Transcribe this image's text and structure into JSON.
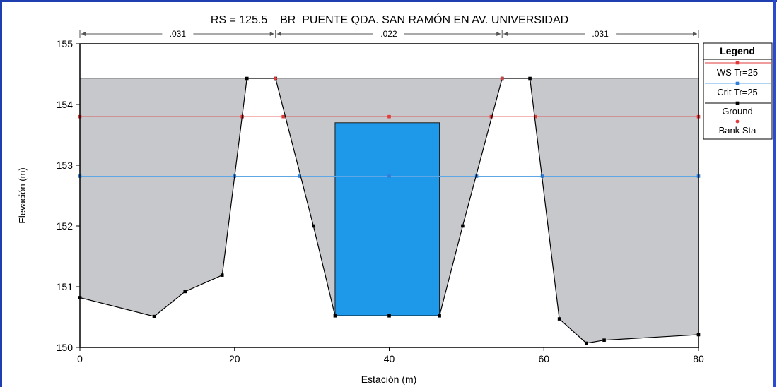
{
  "chart_data": {
    "type": "area",
    "title": "RS = 125.5    BR  PUENTE QDA. SAN RAMÓN EN AV. UNIVERSIDAD",
    "xlabel": "Estación (m)",
    "ylabel": "Elevación (m)",
    "xlim": [
      0,
      80
    ],
    "ylim": [
      150,
      155
    ],
    "xticks": [
      "0",
      "20",
      "40",
      "60",
      "80"
    ],
    "yticks": [
      "150",
      "151",
      "152",
      "153",
      "154",
      "155"
    ],
    "grid": false,
    "legend_position": "right",
    "legend_title": "Legend",
    "colors": {
      "fill": "#c7c8cc",
      "bridge": "#1e98e8",
      "ws": "#e23a3a",
      "crit": "#2f7fd8",
      "ground": "#000000",
      "bank": "#e23a3a"
    },
    "mannings_n": [
      {
        "label": ".031",
        "from": 0,
        "to": 25.3
      },
      {
        "label": ".022",
        "from": 25.3,
        "to": 54.6
      },
      {
        "label": ".031",
        "from": 54.6,
        "to": 80
      }
    ],
    "deck_elevation": 154.43,
    "ground": [
      {
        "x": 0,
        "y": 150.82
      },
      {
        "x": 9.6,
        "y": 150.51
      },
      {
        "x": 13.6,
        "y": 150.92
      },
      {
        "x": 18.4,
        "y": 151.19
      },
      {
        "x": 21.6,
        "y": 154.43
      },
      {
        "x": 25.3,
        "y": 154.43
      },
      {
        "x": 30.2,
        "y": 152.0
      },
      {
        "x": 33.0,
        "y": 150.52
      },
      {
        "x": 40.0,
        "y": 150.52
      },
      {
        "x": 46.5,
        "y": 150.52
      },
      {
        "x": 49.5,
        "y": 152.0
      },
      {
        "x": 54.6,
        "y": 154.43
      },
      {
        "x": 58.2,
        "y": 154.43
      },
      {
        "x": 62.0,
        "y": 150.47
      },
      {
        "x": 65.5,
        "y": 150.07
      },
      {
        "x": 67.8,
        "y": 150.12
      },
      {
        "x": 80,
        "y": 150.21
      }
    ],
    "bank_stations": [
      {
        "x": 25.3,
        "y": 154.43
      },
      {
        "x": 54.6,
        "y": 154.43
      }
    ],
    "bridge_opening": {
      "x1": 33.0,
      "x2": 46.5,
      "y_bottom": 150.52,
      "y_top": 153.7
    },
    "series": [
      {
        "name": "WS Tr=25",
        "y": 153.8,
        "x_points": [
          0,
          21.0,
          26.3,
          40.0,
          53.2,
          58.9,
          80
        ]
      },
      {
        "name": "Crit Tr=25",
        "y": 152.82,
        "x_points": [
          0,
          20.0,
          28.4,
          40.0,
          51.3,
          59.8,
          80
        ]
      },
      {
        "name": "Ground"
      },
      {
        "name": "Bank Sta"
      }
    ]
  }
}
